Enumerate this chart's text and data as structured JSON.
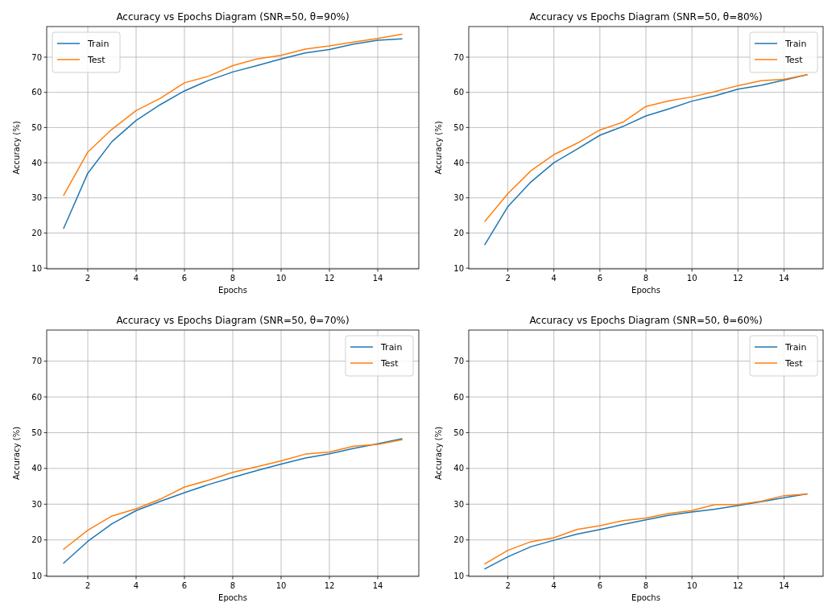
{
  "chart_data": [
    {
      "type": "line",
      "title": "Accuracy vs Epochs Diagram (SNR=50, θ=90%)",
      "xlabel": "Epochs",
      "ylabel": "Accuracy (%)",
      "x": [
        1,
        2,
        3,
        4,
        5,
        6,
        7,
        8,
        9,
        10,
        11,
        12,
        13,
        14,
        15
      ],
      "xlim": [
        0.3,
        15.7
      ],
      "ylim": [
        9.8,
        78.7
      ],
      "xticks": [
        2,
        4,
        6,
        8,
        10,
        12,
        14
      ],
      "yticks": [
        10,
        20,
        30,
        40,
        50,
        60,
        70
      ],
      "grid": true,
      "legend": "top left",
      "series": [
        {
          "name": "Train",
          "color": "#1f77b4",
          "values": [
            21.3,
            37,
            46,
            52,
            56.5,
            60.4,
            63.4,
            65.8,
            67.6,
            69.5,
            71.2,
            72.2,
            73.7,
            74.8,
            75.2
          ]
        },
        {
          "name": "Test",
          "color": "#ff7f0e",
          "values": [
            30.7,
            43,
            49.5,
            54.8,
            58.3,
            62.7,
            64.6,
            67.6,
            69.5,
            70.5,
            72.3,
            73.2,
            74.3,
            75.3,
            76.5
          ]
        }
      ]
    },
    {
      "type": "line",
      "title": "Accuracy vs Epochs Diagram (SNR=50, θ=80%)",
      "xlabel": "Epochs",
      "ylabel": "Accuracy (%)",
      "x": [
        1,
        2,
        3,
        4,
        5,
        6,
        7,
        8,
        9,
        10,
        11,
        12,
        13,
        14,
        15
      ],
      "xlim": [
        0.3,
        15.7
      ],
      "ylim": [
        9.8,
        78.7
      ],
      "xticks": [
        2,
        4,
        6,
        8,
        10,
        12,
        14
      ],
      "yticks": [
        10,
        20,
        30,
        40,
        50,
        60,
        70
      ],
      "grid": true,
      "legend": "top right",
      "series": [
        {
          "name": "Train",
          "color": "#1f77b4",
          "values": [
            16.7,
            27.5,
            34.5,
            40,
            43.8,
            47.8,
            50.3,
            53.3,
            55.3,
            57.5,
            59,
            60.9,
            62,
            63.5,
            65
          ]
        },
        {
          "name": "Test",
          "color": "#ff7f0e",
          "values": [
            23.3,
            31.2,
            37.7,
            42.3,
            45.5,
            49.3,
            51.5,
            56,
            57.6,
            58.7,
            60.2,
            61.9,
            63.3,
            63.7,
            65
          ]
        }
      ]
    },
    {
      "type": "line",
      "title": "Accuracy vs Epochs Diagram (SNR=50, θ=70%)",
      "xlabel": "Epochs",
      "ylabel": "Accuracy (%)",
      "x": [
        1,
        2,
        3,
        4,
        5,
        6,
        7,
        8,
        9,
        10,
        11,
        12,
        13,
        14,
        15
      ],
      "xlim": [
        0.3,
        15.7
      ],
      "ylim": [
        9.8,
        78.7
      ],
      "xticks": [
        2,
        4,
        6,
        8,
        10,
        12,
        14
      ],
      "yticks": [
        10,
        20,
        30,
        40,
        50,
        60,
        70
      ],
      "grid": true,
      "legend": "top right",
      "series": [
        {
          "name": "Train",
          "color": "#1f77b4",
          "values": [
            13.5,
            19.6,
            24.5,
            28.2,
            30.8,
            33.2,
            35.5,
            37.5,
            39.4,
            41.2,
            42.9,
            44.1,
            45.6,
            46.9,
            48.3
          ]
        },
        {
          "name": "Test",
          "color": "#ff7f0e",
          "values": [
            17.4,
            22.7,
            26.7,
            28.7,
            31.4,
            34.8,
            36.7,
            38.9,
            40.5,
            42.1,
            44,
            44.6,
            46.2,
            46.7,
            48
          ]
        }
      ]
    },
    {
      "type": "line",
      "title": "Accuracy vs Epochs Diagram (SNR=50, θ=60%)",
      "xlabel": "Epochs",
      "ylabel": "Accuracy (%)",
      "x": [
        1,
        2,
        3,
        4,
        5,
        6,
        7,
        8,
        9,
        10,
        11,
        12,
        13,
        14,
        15
      ],
      "xlim": [
        0.3,
        15.7
      ],
      "ylim": [
        9.8,
        78.7
      ],
      "xticks": [
        2,
        4,
        6,
        8,
        10,
        12,
        14
      ],
      "yticks": [
        10,
        20,
        30,
        40,
        50,
        60,
        70
      ],
      "grid": true,
      "legend": "top right",
      "series": [
        {
          "name": "Train",
          "color": "#1f77b4",
          "values": [
            11.9,
            15.3,
            18.1,
            19.9,
            21.6,
            22.9,
            24.3,
            25.6,
            26.9,
            27.8,
            28.6,
            29.6,
            30.7,
            31.8,
            32.9
          ]
        },
        {
          "name": "Test",
          "color": "#ff7f0e",
          "values": [
            13.3,
            17.1,
            19.5,
            20.6,
            22.9,
            24,
            25.4,
            26.1,
            27.4,
            28.2,
            29.9,
            29.9,
            30.8,
            32.4,
            32.8
          ]
        }
      ]
    }
  ]
}
